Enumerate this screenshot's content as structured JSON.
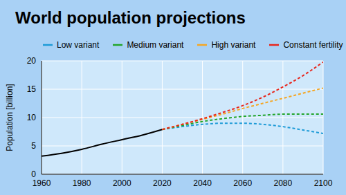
{
  "chart_data": {
    "type": "line",
    "title": "World population projections",
    "y_label": "Population [billion]",
    "x": [
      1960,
      1970,
      1980,
      1990,
      2000,
      2010,
      2020,
      2030,
      2040,
      2050,
      2060,
      2070,
      2080,
      2090,
      2100
    ],
    "series": [
      {
        "color": "#000000",
        "line_style": "solid",
        "values": [
          3.2,
          3.7,
          4.4,
          5.3,
          6.1,
          6.9,
          7.9,
          null,
          null,
          null,
          null,
          null,
          null,
          null,
          null
        ]
      },
      {
        "name": "Low variant",
        "color": "#1e9bd7",
        "line_style": "dashed",
        "values": [
          null,
          null,
          null,
          null,
          null,
          null,
          7.9,
          8.4,
          8.8,
          9.0,
          9.0,
          8.8,
          8.4,
          7.8,
          7.2
        ]
      },
      {
        "name": "Medium variant",
        "color": "#22a52a",
        "line_style": "dashed",
        "values": [
          null,
          null,
          null,
          null,
          null,
          null,
          7.9,
          8.6,
          9.3,
          9.8,
          10.2,
          10.4,
          10.6,
          10.6,
          10.6
        ]
      },
      {
        "name": "High variant",
        "color": "#f5a623",
        "line_style": "dashed",
        "values": [
          null,
          null,
          null,
          null,
          null,
          null,
          7.9,
          8.8,
          9.7,
          10.6,
          11.6,
          12.5,
          13.4,
          14.3,
          15.2
        ]
      },
      {
        "name": "Constant fertility",
        "color": "#e8261c",
        "line_style": "dashed",
        "values": [
          null,
          null,
          null,
          null,
          null,
          null,
          7.9,
          8.8,
          9.8,
          10.9,
          12.1,
          13.6,
          15.4,
          17.4,
          19.8
        ]
      }
    ],
    "xlim": [
      1960,
      2100
    ],
    "xticks": [
      1960,
      1980,
      2000,
      2020,
      2040,
      2060,
      2080,
      2100
    ],
    "ylim": [
      0,
      20
    ],
    "yticks": [
      0,
      5,
      10,
      15,
      20
    ],
    "grid": true,
    "legend": "top"
  }
}
